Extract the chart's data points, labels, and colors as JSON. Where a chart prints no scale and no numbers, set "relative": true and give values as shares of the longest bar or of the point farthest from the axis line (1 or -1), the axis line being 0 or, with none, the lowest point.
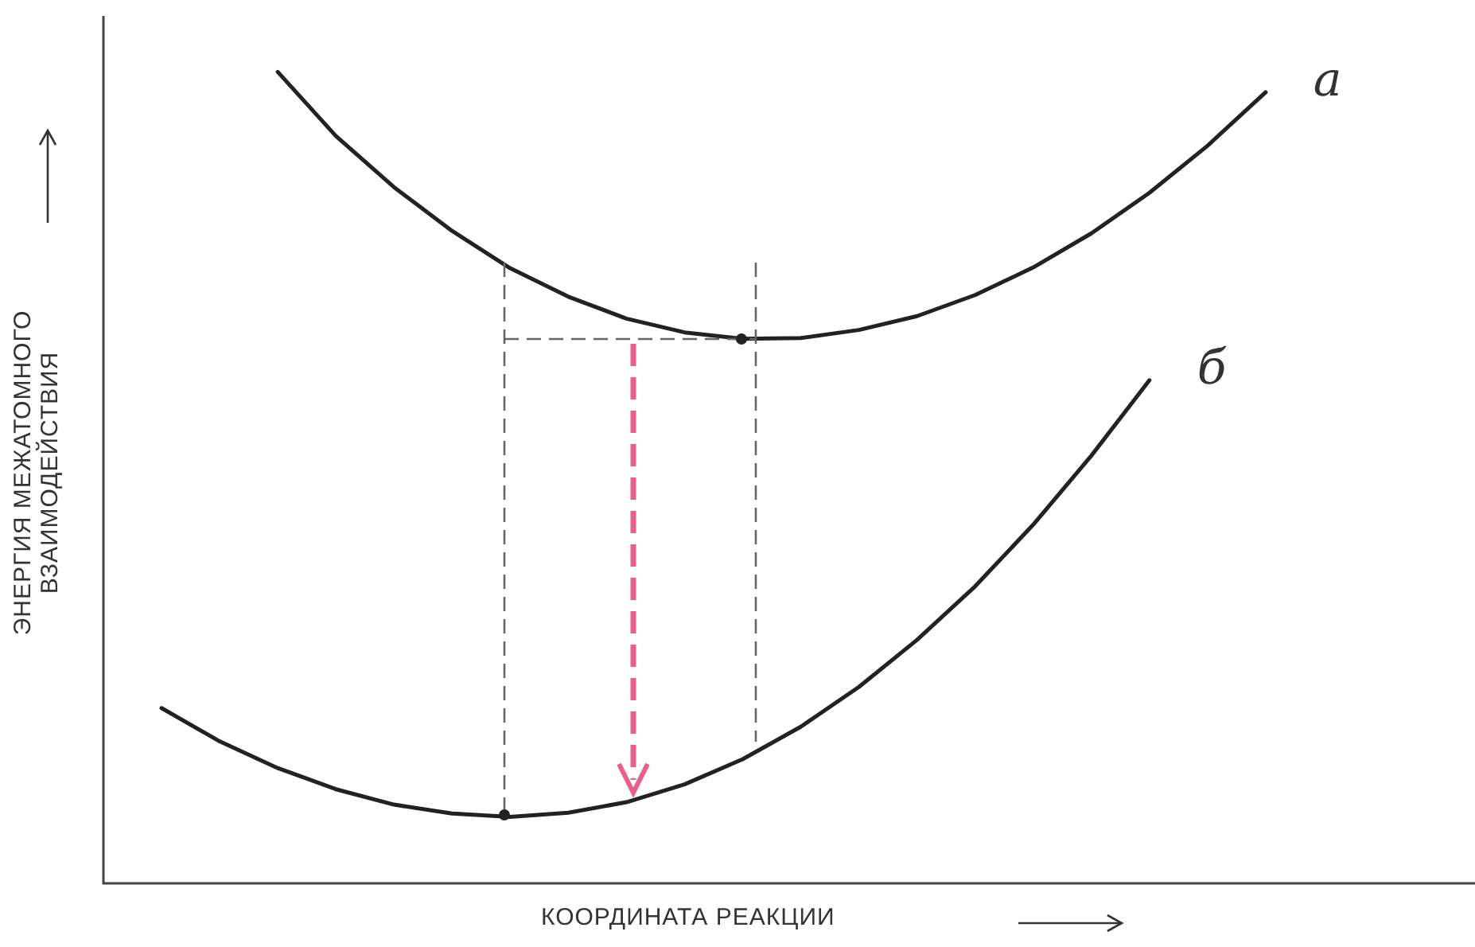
{
  "chart_data": {
    "type": "line",
    "relative": true,
    "xlabel": "КООРДИНАТА РЕАКЦИИ",
    "ylabel": "ЭНЕРГИЯ МЕЖАТОМНОГО ВЗАИМОДЕЙСТВИЯ",
    "grid": false,
    "legend": false,
    "marker": "none",
    "tick_labels": false,
    "categories": [
      null,
      null,
      null,
      null,
      null,
      null,
      null,
      null,
      null,
      null,
      null,
      null,
      null,
      null,
      null,
      null,
      null,
      null,
      null,
      null,
      null,
      null,
      null,
      null
    ],
    "series": [
      {
        "name": "а",
        "color": "#222222",
        "values": [
          null,
          null,
          null,
          1,
          0.921,
          0.858,
          0.804,
          0.758,
          0.723,
          0.696,
          0.679,
          0.671,
          0.672,
          0.682,
          0.699,
          0.725,
          0.759,
          0.801,
          0.851,
          0.909,
          0.975,
          null,
          null,
          null
        ]
      },
      {
        "name": "б",
        "color": "#222222",
        "values": [
          null,
          0.216,
          0.175,
          0.142,
          0.116,
          0.097,
          0.086,
          0.082,
          0.087,
          0.1,
          0.122,
          0.153,
          0.193,
          0.242,
          0.3,
          0.366,
          0.442,
          0.527,
          0.62,
          null,
          null,
          null,
          null,
          null
        ]
      }
    ]
  }
}
